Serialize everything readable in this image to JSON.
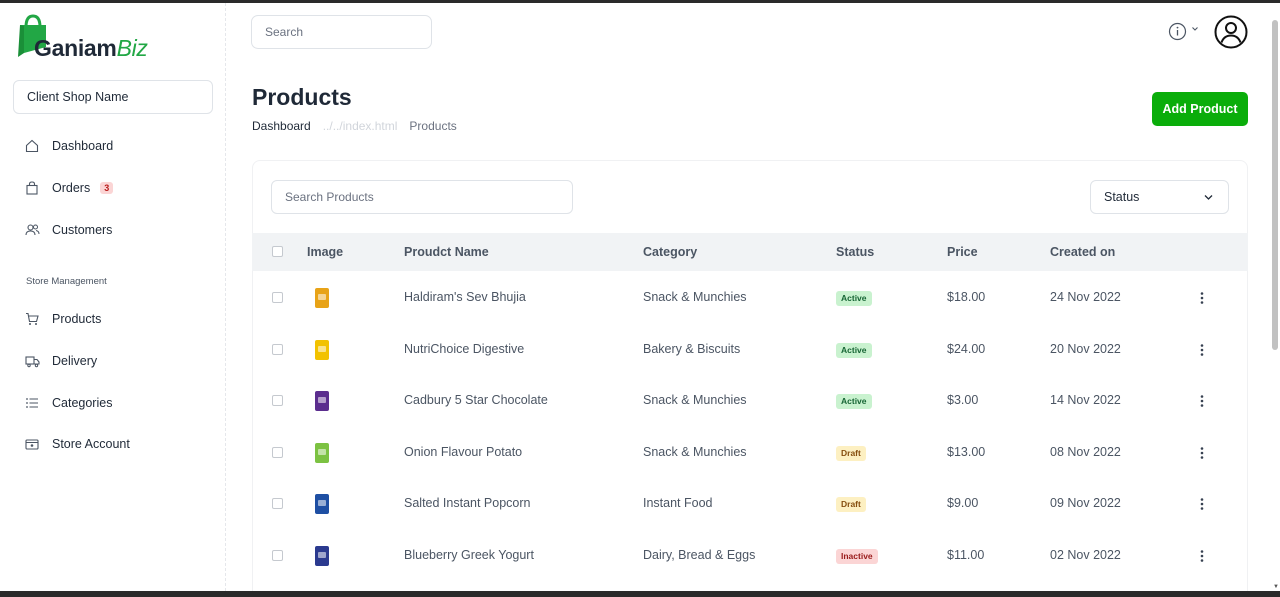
{
  "brand": {
    "name_part1": "Ganiam",
    "name_part2": "Biz"
  },
  "sidebar": {
    "shop_name": "Client Shop Name",
    "items": [
      {
        "label": "Dashboard",
        "icon": "home-icon"
      },
      {
        "label": "Orders",
        "icon": "bag-icon",
        "badge": "3"
      },
      {
        "label": "Customers",
        "icon": "users-icon"
      }
    ],
    "section_title": "Store Management",
    "store_items": [
      {
        "label": "Products",
        "icon": "cart-icon"
      },
      {
        "label": "Delivery",
        "icon": "truck-icon"
      },
      {
        "label": "Categories",
        "icon": "list-icon"
      },
      {
        "label": "Store Account",
        "icon": "wallet-icon"
      }
    ]
  },
  "header": {
    "search_placeholder": "Search"
  },
  "page": {
    "title": "Products",
    "breadcrumbs": [
      "Dashboard",
      "../../index.html",
      "Products"
    ],
    "add_button": "Add Product"
  },
  "toolbar": {
    "search_placeholder": "Search Products",
    "status_filter": "Status"
  },
  "table": {
    "columns": [
      "Image",
      "Proudct Name",
      "Category",
      "Status",
      "Price",
      "Created on"
    ],
    "rows": [
      {
        "name": "Haldiram's Sev Bhujia",
        "category": "Snack & Munchies",
        "status": "Active",
        "price": "$18.00",
        "created": "24 Nov 2022",
        "image_color": "#e8a317"
      },
      {
        "name": "NutriChoice Digestive",
        "category": "Bakery & Biscuits",
        "status": "Active",
        "price": "$24.00",
        "created": "20 Nov 2022",
        "image_color": "#f2c200"
      },
      {
        "name": "Cadbury 5 Star Chocolate",
        "category": "Snack & Munchies",
        "status": "Active",
        "price": "$3.00",
        "created": "14 Nov 2022",
        "image_color": "#5b2d8e"
      },
      {
        "name": "Onion Flavour Potato",
        "category": "Snack & Munchies",
        "status": "Draft",
        "price": "$13.00",
        "created": "08 Nov 2022",
        "image_color": "#7cc242"
      },
      {
        "name": "Salted Instant Popcorn",
        "category": "Instant Food",
        "status": "Draft",
        "price": "$9.00",
        "created": "09 Nov 2022",
        "image_color": "#1e4fa3"
      },
      {
        "name": "Blueberry Greek Yogurt",
        "category": "Dairy, Bread & Eggs",
        "status": "Inactive",
        "price": "$11.00",
        "created": "02 Nov 2022",
        "image_color": "#2b3a8f"
      }
    ]
  },
  "colors": {
    "accent": "#0aad0a",
    "brand_green": "#22a745"
  }
}
